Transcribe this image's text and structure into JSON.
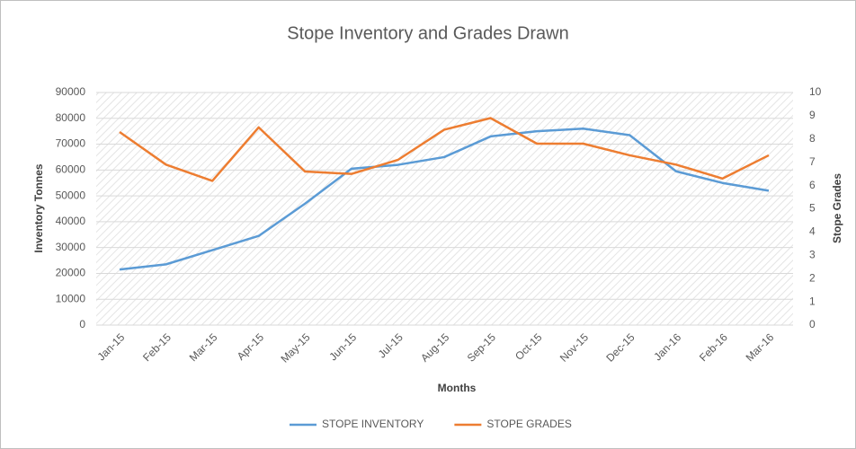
{
  "chart_data": {
    "type": "line",
    "title": "Stope Inventory and Grades Drawn",
    "x_label": "Months",
    "y_label": "Inventory Tonnes",
    "y2_label": "Stope Grades",
    "categories": [
      "Jan-15",
      "Feb-15",
      "Mar-15",
      "Apr-15",
      "May-15",
      "Jun-15",
      "Jul-15",
      "Aug-15",
      "Sep-15",
      "Oct-15",
      "Nov-15",
      "Dec-15",
      "Jan-16",
      "Feb-16",
      "Mar-16"
    ],
    "series": [
      {
        "name": "STOPE INVENTORY",
        "color": "#5b9bd5",
        "values": [
          21500,
          23500,
          29000,
          34500,
          47000,
          60500,
          62000,
          65000,
          73000,
          75000,
          76000,
          73500,
          59500,
          55000,
          52000
        ]
      },
      {
        "name": "STOPE GRADES",
        "color": "#ed7d31",
        "axis": "y2",
        "values": [
          8.3,
          6.9,
          6.2,
          8.5,
          6.6,
          6.5,
          7.1,
          8.4,
          8.9,
          7.8,
          7.8,
          7.3,
          6.9,
          6.3,
          7.3
        ]
      }
    ],
    "ylim": [
      0,
      90000
    ],
    "yticks": [
      0,
      10000,
      20000,
      30000,
      40000,
      50000,
      60000,
      70000,
      80000,
      90000
    ],
    "y2lim": [
      0,
      10
    ],
    "y2ticks": [
      0,
      1,
      2,
      3,
      4,
      5,
      6,
      7,
      8,
      9,
      10
    ],
    "grid": true,
    "legend": "bottom"
  }
}
